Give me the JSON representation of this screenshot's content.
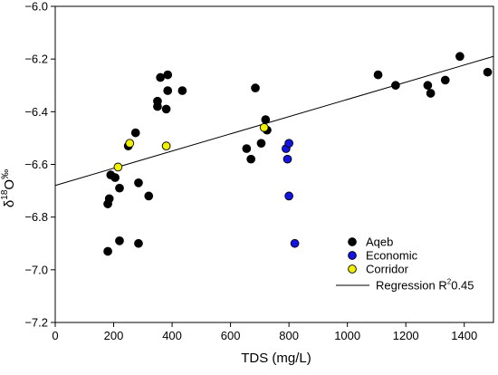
{
  "chart_data": {
    "type": "scatter",
    "xlabel": "TDS (mg/L)",
    "ylabel": {
      "delta": "δ",
      "superscript": "18",
      "letter": "O",
      "unit": "‰"
    },
    "xlim": [
      0,
      1500
    ],
    "ylim": [
      -7.2,
      -6.0
    ],
    "xticks": [
      0,
      200,
      400,
      600,
      800,
      1000,
      1200,
      1400
    ],
    "yticks": [
      -7.2,
      -7.0,
      -6.8,
      -6.6,
      -6.4,
      -6.2,
      -6.0
    ],
    "xtick_labels": [
      "0",
      "200",
      "400",
      "600",
      "800",
      "1000",
      "1200",
      "1400"
    ],
    "ytick_labels": [
      "−7.2",
      "−7.0",
      "−6.8",
      "−6.6",
      "−6.4",
      "−6.2",
      "−6.0"
    ],
    "grid": false,
    "legend_position": "bottom-right",
    "series": [
      {
        "name": "Aqeb",
        "color": "#000000",
        "points": [
          [
            180,
            -6.93
          ],
          [
            180,
            -6.75
          ],
          [
            185,
            -6.73
          ],
          [
            190,
            -6.64
          ],
          [
            205,
            -6.65
          ],
          [
            220,
            -6.89
          ],
          [
            220,
            -6.69
          ],
          [
            250,
            -6.53
          ],
          [
            275,
            -6.48
          ],
          [
            285,
            -6.67
          ],
          [
            285,
            -6.9
          ],
          [
            320,
            -6.72
          ],
          [
            350,
            -6.36
          ],
          [
            350,
            -6.38
          ],
          [
            360,
            -6.27
          ],
          [
            380,
            -6.39
          ],
          [
            385,
            -6.26
          ],
          [
            385,
            -6.32
          ],
          [
            435,
            -6.32
          ],
          [
            655,
            -6.54
          ],
          [
            670,
            -6.58
          ],
          [
            685,
            -6.31
          ],
          [
            705,
            -6.52
          ],
          [
            720,
            -6.43
          ],
          [
            725,
            -6.47
          ],
          [
            1105,
            -6.26
          ],
          [
            1165,
            -6.3
          ],
          [
            1275,
            -6.3
          ],
          [
            1285,
            -6.33
          ],
          [
            1335,
            -6.28
          ],
          [
            1385,
            -6.19
          ],
          [
            1480,
            -6.25
          ]
        ]
      },
      {
        "name": "Economic",
        "color": "#1414e0",
        "points": [
          [
            790,
            -6.54
          ],
          [
            795,
            -6.58
          ],
          [
            800,
            -6.52
          ],
          [
            800,
            -6.72
          ],
          [
            820,
            -6.9
          ]
        ]
      },
      {
        "name": "Corridor",
        "color": "#f0f000",
        "points": [
          [
            215,
            -6.61
          ],
          [
            255,
            -6.52
          ],
          [
            380,
            -6.53
          ],
          [
            715,
            -6.46
          ]
        ]
      }
    ],
    "regression": {
      "name": "Regression",
      "r2_label": "R",
      "r2_superscript": "2",
      "r2_value": "0.45",
      "x": [
        0,
        1500
      ],
      "y": [
        -6.68,
        -6.19
      ]
    }
  }
}
